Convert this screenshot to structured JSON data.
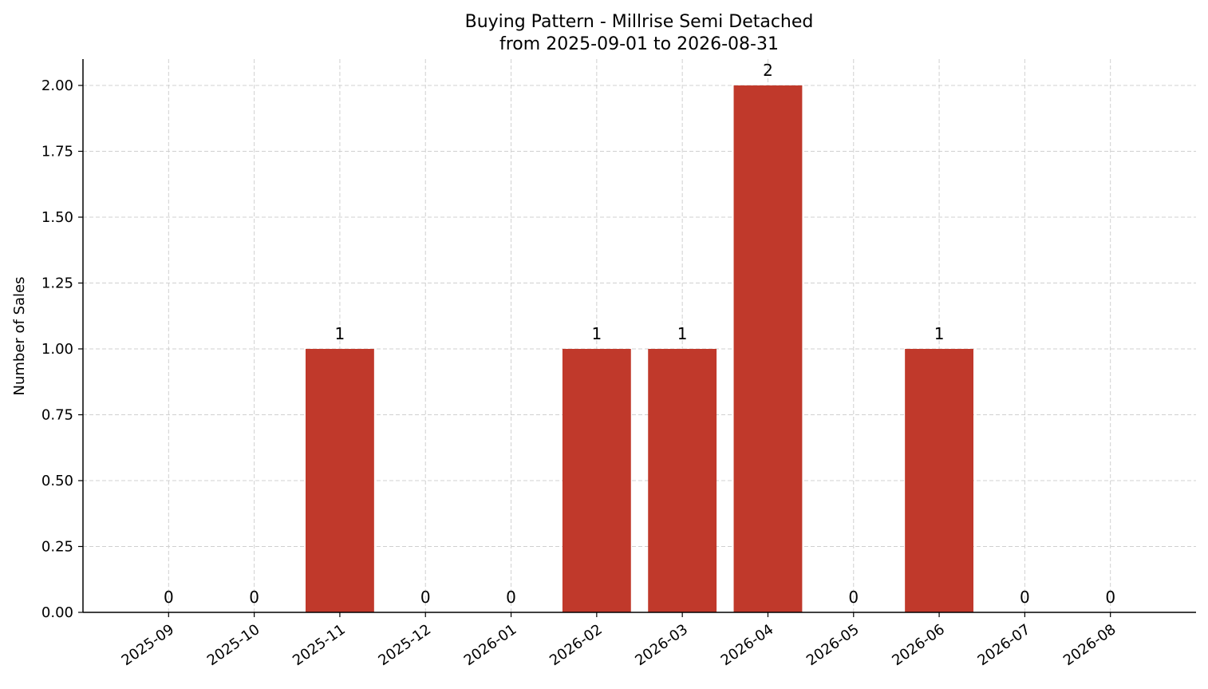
{
  "chart_data": {
    "type": "bar",
    "title": "Buying Pattern - Millrise Semi Detached",
    "subtitle": "from 2025-09-01 to 2026-08-31",
    "y_label": "Number of Sales",
    "categories": [
      "2025-09",
      "2025-10",
      "2025-11",
      "2025-12",
      "2026-01",
      "2026-02",
      "2026-03",
      "2026-04",
      "2026-05",
      "2026-06",
      "2026-07",
      "2026-08"
    ],
    "values": [
      0,
      0,
      1,
      0,
      0,
      1,
      1,
      2,
      0,
      1,
      0,
      0
    ],
    "color": "#c0392b",
    "ylim": [
      0,
      2.1
    ],
    "yticks": [
      {
        "value": 0,
        "label": "0.00"
      },
      {
        "value": 0.25,
        "label": "0.25"
      },
      {
        "value": 0.5,
        "label": "0.50"
      },
      {
        "value": 0.75,
        "label": "0.75"
      },
      {
        "value": 1,
        "label": "1.00"
      },
      {
        "value": 1.25,
        "label": "1.25"
      },
      {
        "value": 1.5,
        "label": "1.50"
      },
      {
        "value": 1.75,
        "label": "1.75"
      },
      {
        "value": 2,
        "label": "2.00"
      }
    ],
    "grid": true
  }
}
